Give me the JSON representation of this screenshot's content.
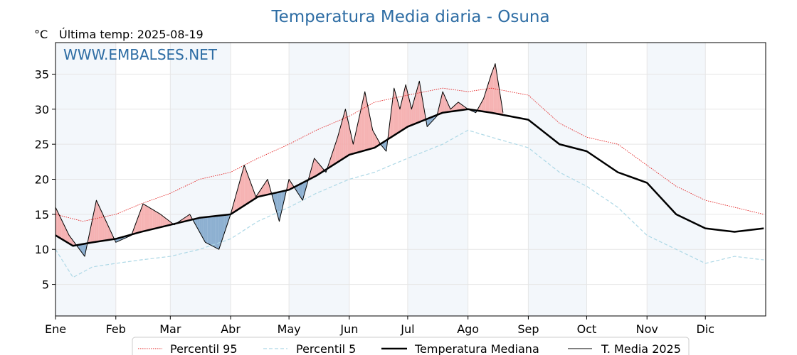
{
  "chart_data": {
    "type": "line",
    "title": "Temperatura Media diaria - Osuna",
    "unit_label": "°C",
    "last_temp_label": "Última temp: 2025-08-19",
    "watermark": "WWW.EMBALSES.NET",
    "ylim": [
      0.5,
      39.5
    ],
    "yticks": [
      5,
      10,
      15,
      20,
      25,
      30,
      35
    ],
    "month_labels": [
      "Ene",
      "Feb",
      "Mar",
      "Abr",
      "May",
      "Jun",
      "Jul",
      "Ago",
      "Sep",
      "Oct",
      "Nov",
      "Dic"
    ],
    "month_start_days": [
      1,
      32,
      60,
      91,
      121,
      152,
      182,
      213,
      244,
      274,
      305,
      335
    ],
    "days_in_year": 365,
    "grid": true,
    "legend_position": "bottom",
    "legend": [
      {
        "label": "Percentil 95",
        "style": "dotted-red"
      },
      {
        "label": "Percentil 5",
        "style": "dashed-lightblue"
      },
      {
        "label": "Temperatura Mediana",
        "style": "thick-black"
      },
      {
        "label": "T. Media 2025",
        "style": "thin-black"
      }
    ],
    "series": [
      {
        "name": "Percentil 95",
        "x": [
          1,
          15,
          32,
          45,
          60,
          75,
          91,
          105,
          121,
          135,
          152,
          165,
          182,
          200,
          213,
          225,
          244,
          260,
          274,
          290,
          305,
          320,
          335,
          350,
          365
        ],
        "values": [
          15.0,
          14.0,
          15.0,
          16.5,
          18.0,
          20.0,
          21.0,
          23.0,
          25.0,
          27.0,
          29.0,
          31.0,
          32.0,
          33.0,
          32.5,
          33.0,
          32.0,
          28.0,
          26.0,
          25.0,
          22.0,
          19.0,
          17.0,
          16.0,
          15.0
        ]
      },
      {
        "name": "Percentil 5",
        "x": [
          1,
          10,
          20,
          32,
          45,
          60,
          75,
          91,
          105,
          121,
          135,
          152,
          165,
          182,
          200,
          213,
          225,
          244,
          260,
          274,
          290,
          305,
          320,
          335,
          350,
          365
        ],
        "values": [
          10.0,
          6.0,
          7.5,
          8.0,
          8.5,
          9.0,
          10.0,
          11.5,
          14.0,
          16.0,
          18.0,
          20.0,
          21.0,
          23.0,
          25.0,
          27.0,
          26.0,
          24.5,
          21.0,
          19.0,
          16.0,
          12.0,
          10.0,
          8.0,
          9.0,
          8.5
        ]
      },
      {
        "name": "Temperatura Mediana",
        "x": [
          1,
          10,
          20,
          32,
          45,
          60,
          75,
          91,
          105,
          121,
          135,
          152,
          165,
          182,
          200,
          213,
          225,
          244,
          260,
          274,
          290,
          305,
          320,
          335,
          350,
          365
        ],
        "values": [
          12.0,
          10.5,
          11.0,
          11.5,
          12.5,
          13.5,
          14.5,
          15.0,
          17.5,
          18.5,
          20.5,
          23.5,
          24.5,
          27.5,
          29.5,
          30.0,
          29.5,
          28.5,
          25.0,
          24.0,
          21.0,
          19.5,
          15.0,
          13.0,
          12.5,
          13.0
        ]
      },
      {
        "name": "T. Media 2025",
        "x": [
          1,
          8,
          16,
          22,
          32,
          40,
          46,
          55,
          62,
          70,
          78,
          85,
          91,
          98,
          104,
          110,
          116,
          121,
          128,
          134,
          140,
          146,
          150,
          154,
          160,
          164,
          168,
          171,
          175,
          178,
          181,
          184,
          188,
          192,
          197,
          200,
          204,
          208,
          213,
          217,
          221,
          225,
          227,
          231
        ],
        "values": [
          16.0,
          12.0,
          9.0,
          17.0,
          11.0,
          12.0,
          16.5,
          15.0,
          13.5,
          15.0,
          11.0,
          10.0,
          15.0,
          22.0,
          17.5,
          20.0,
          14.0,
          20.0,
          17.0,
          23.0,
          21.0,
          26.0,
          30.0,
          25.0,
          32.5,
          27.0,
          25.0,
          24.0,
          33.0,
          30.0,
          33.5,
          30.0,
          34.0,
          27.5,
          29.0,
          32.5,
          30.0,
          31.0,
          30.0,
          29.5,
          31.5,
          35.0,
          36.5,
          29.5
        ]
      }
    ]
  }
}
